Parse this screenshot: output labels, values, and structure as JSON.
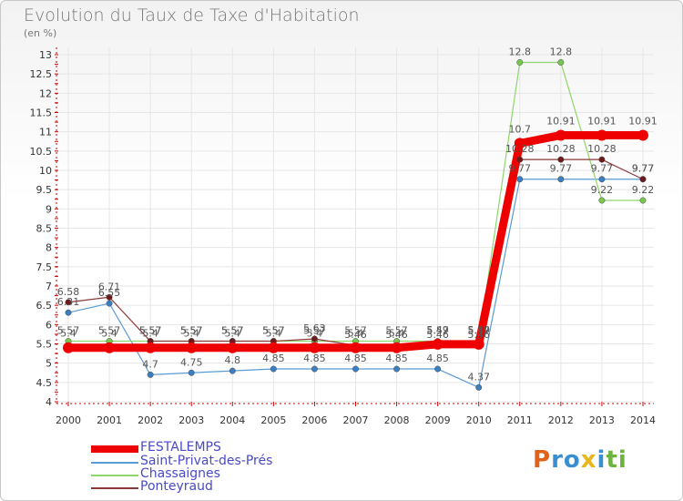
{
  "header": {
    "title": "Evolution du Taux de Taxe d'Habitation",
    "unit": "(en %)"
  },
  "brand": {
    "logo_text": "Proxiti",
    "logo_colors": [
      "#e0631b",
      "#3b8fd1",
      "#3b8fd1",
      "#e8b71c",
      "#3b8fd1",
      "#6cb33f",
      "#6cb33f"
    ]
  },
  "colors": {
    "axis": "#cc0000",
    "grid": "#e6e6e6",
    "tick_text": "#333333",
    "legend_text": "#4a4ac8"
  },
  "chart_data": {
    "type": "line",
    "title": "Evolution du Taux de Taxe d'Habitation",
    "subtitle": "(en %)",
    "xlabel": "",
    "ylabel": "",
    "x": [
      "2000",
      "2001",
      "2002",
      "2003",
      "2004",
      "2005",
      "2006",
      "2007",
      "2008",
      "2009",
      "2010",
      "2011",
      "2012",
      "2013",
      "2014"
    ],
    "ylim": [
      4,
      13
    ],
    "yticks": [
      "4",
      "4.5",
      "5",
      "5.5",
      "6",
      "6.5",
      "7",
      "7.5",
      "8",
      "8.5",
      "9",
      "9.5",
      "10",
      "10.5",
      "11",
      "11.5",
      "12",
      "12.5",
      "13"
    ],
    "grid": true,
    "legend_position": "bottom-left",
    "series": [
      {
        "name": "Saint-Privat-des-Prés",
        "color": "#5b9bd5",
        "point_color": "#3b7fc0",
        "width": 1.2,
        "values": [
          6.31,
          6.55,
          4.7,
          4.75,
          4.8,
          4.85,
          4.85,
          4.85,
          4.85,
          4.85,
          4.37,
          9.77,
          9.77,
          9.77,
          9.77
        ],
        "labels": [
          "6.31",
          "6.55",
          "4.7",
          "4.75",
          "4.8",
          "4.85",
          "4.85",
          "4.85",
          "4.85",
          "4.85",
          "4.37",
          "9.77",
          "9.77",
          "9.77",
          "9.77"
        ]
      },
      {
        "name": "Chassaignes",
        "color": "#8ed66b",
        "point_color": "#78c850",
        "width": 1.2,
        "values": [
          5.57,
          5.57,
          5.57,
          5.57,
          5.57,
          5.57,
          5.57,
          5.57,
          5.57,
          5.57,
          5.57,
          12.8,
          12.8,
          9.22,
          9.22
        ],
        "labels": [
          "5.57",
          "5.57",
          "5.57",
          "5.57",
          "5.57",
          "5.57",
          "5.57",
          "5.57",
          "5.57",
          "5.57",
          "5.57",
          "12.8",
          "12.8",
          "9.22",
          "9.22"
        ]
      },
      {
        "name": "Ponteyraud",
        "color": "#8b3a3a",
        "point_color": "#6e1a1a",
        "width": 1.2,
        "values": [
          6.58,
          6.71,
          5.57,
          5.57,
          5.57,
          5.57,
          5.63,
          5.46,
          5.46,
          5.46,
          5.46,
          10.28,
          10.28,
          10.28,
          9.77
        ],
        "labels": [
          "6.58",
          "6.71",
          "5.57",
          "5.57",
          "5.57",
          "5.57",
          "5.63",
          "5.46",
          "5.46",
          "5.46",
          "5.46",
          "10.28",
          "10.28",
          "10.28",
          "9.77"
        ]
      },
      {
        "name": "FESTALEMPS",
        "color": "#ee0000",
        "point_color": "#ee0000",
        "width": 9,
        "values": [
          5.4,
          5.4,
          5.4,
          5.4,
          5.4,
          5.4,
          5.4,
          5.4,
          5.4,
          5.49,
          5.49,
          10.7,
          10.91,
          10.91,
          10.91
        ],
        "labels": [
          "5.4",
          "5.4",
          "5.4",
          "5.4",
          "5.4",
          "5.4",
          "5.4",
          "5.4",
          "5.4",
          "5.49",
          "5.49",
          "10.7",
          "10.91",
          "10.91",
          "10.91"
        ]
      }
    ],
    "legend_order": [
      "FESTALEMPS",
      "Saint-Privat-des-Prés",
      "Chassaignes",
      "Ponteyraud"
    ]
  }
}
